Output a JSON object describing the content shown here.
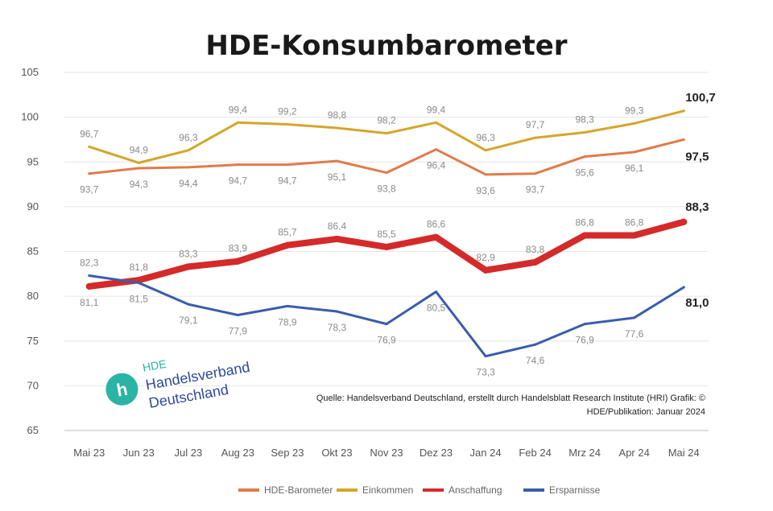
{
  "chart_data": {
    "type": "line",
    "title": "HDE-Konsumbarometer",
    "categories": [
      "Mai 23",
      "Jun 23",
      "Jul 23",
      "Aug 23",
      "Sep 23",
      "Okt 23",
      "Nov 23",
      "Dez 23",
      "Jan 24",
      "Feb 24",
      "Mrz 24",
      "Apr 24",
      "Mai 24"
    ],
    "ylim": [
      65,
      105
    ],
    "yticks": [
      65,
      70,
      75,
      80,
      85,
      90,
      95,
      100,
      105
    ],
    "grid": true,
    "legend_position": "bottom",
    "series": [
      {
        "name": "HDE-Barometer",
        "color": "#e07b4a",
        "width": 3,
        "values": [
          93.7,
          94.3,
          94.4,
          94.7,
          94.7,
          95.1,
          93.8,
          96.4,
          93.6,
          93.7,
          95.6,
          96.1,
          97.5
        ],
        "labels": [
          "93,7",
          "94,3",
          "94,4",
          "94,7",
          "94,7",
          "95,1",
          "93,8",
          "96,4",
          "93,6",
          "93,7",
          "95,6",
          "96,1",
          "97,5"
        ],
        "label_pos": [
          "below",
          "below",
          "below",
          "below",
          "below",
          "below",
          "below",
          "below",
          "below",
          "below",
          "below",
          "below",
          "end"
        ]
      },
      {
        "name": "Einkommen",
        "color": "#d4a62a",
        "width": 3,
        "values": [
          96.7,
          94.9,
          96.3,
          99.4,
          99.2,
          98.8,
          98.2,
          99.4,
          96.3,
          97.7,
          98.3,
          99.3,
          100.7
        ],
        "labels": [
          "96,7",
          "94,9",
          "96,3",
          "99,4",
          "99,2",
          "98,8",
          "98,2",
          "99,4",
          "96,3",
          "97,7",
          "98,3",
          "99,3",
          "100,7"
        ],
        "label_pos": [
          "above",
          "above",
          "above",
          "above",
          "above",
          "above",
          "above",
          "above",
          "above",
          "above",
          "above",
          "above",
          "end"
        ]
      },
      {
        "name": "Anschaffung",
        "color": "#d42a2a",
        "width": 8,
        "values": [
          81.1,
          81.8,
          83.3,
          83.9,
          85.7,
          86.4,
          85.5,
          86.6,
          82.9,
          83.8,
          86.8,
          86.8,
          88.3
        ],
        "labels": [
          "81,1",
          "81,8",
          "83,3",
          "83,9",
          "85,7",
          "86,4",
          "85,5",
          "86,6",
          "82,9",
          "83,8",
          "86,8",
          "86,8",
          "88,3"
        ],
        "label_pos": [
          "below",
          "above",
          "above",
          "above",
          "above",
          "above",
          "above",
          "above",
          "above",
          "above",
          "above",
          "above",
          "end"
        ]
      },
      {
        "name": "Ersparnisse",
        "color": "#3a5dab",
        "width": 3,
        "values": [
          82.3,
          81.5,
          79.1,
          77.9,
          78.9,
          78.3,
          76.9,
          80.5,
          73.3,
          74.6,
          76.9,
          77.6,
          81.0
        ],
        "labels": [
          "82,3",
          "81,5",
          "79,1",
          "77,9",
          "78,9",
          "78,3",
          "76,9",
          "80,5",
          "73,3",
          "74,6",
          "76,9",
          "77,6",
          "81,0"
        ],
        "label_pos": [
          "above",
          "below",
          "below",
          "below",
          "below",
          "below",
          "below",
          "below",
          "below",
          "below",
          "below",
          "below",
          "end"
        ]
      }
    ],
    "annotation_source": [
      "Quelle: Handelsverband Deutschland, erstellt durch Handelsblatt Research Institute (HRI) Grafik: ©",
      "HDE/Publikation: Januar 2024"
    ]
  },
  "logo": {
    "abbr": "HDE",
    "line1": "Handelsverband",
    "line2": "Deutschland",
    "mark_color": "#2bb3a3",
    "text_color": "#2e4a9e"
  }
}
